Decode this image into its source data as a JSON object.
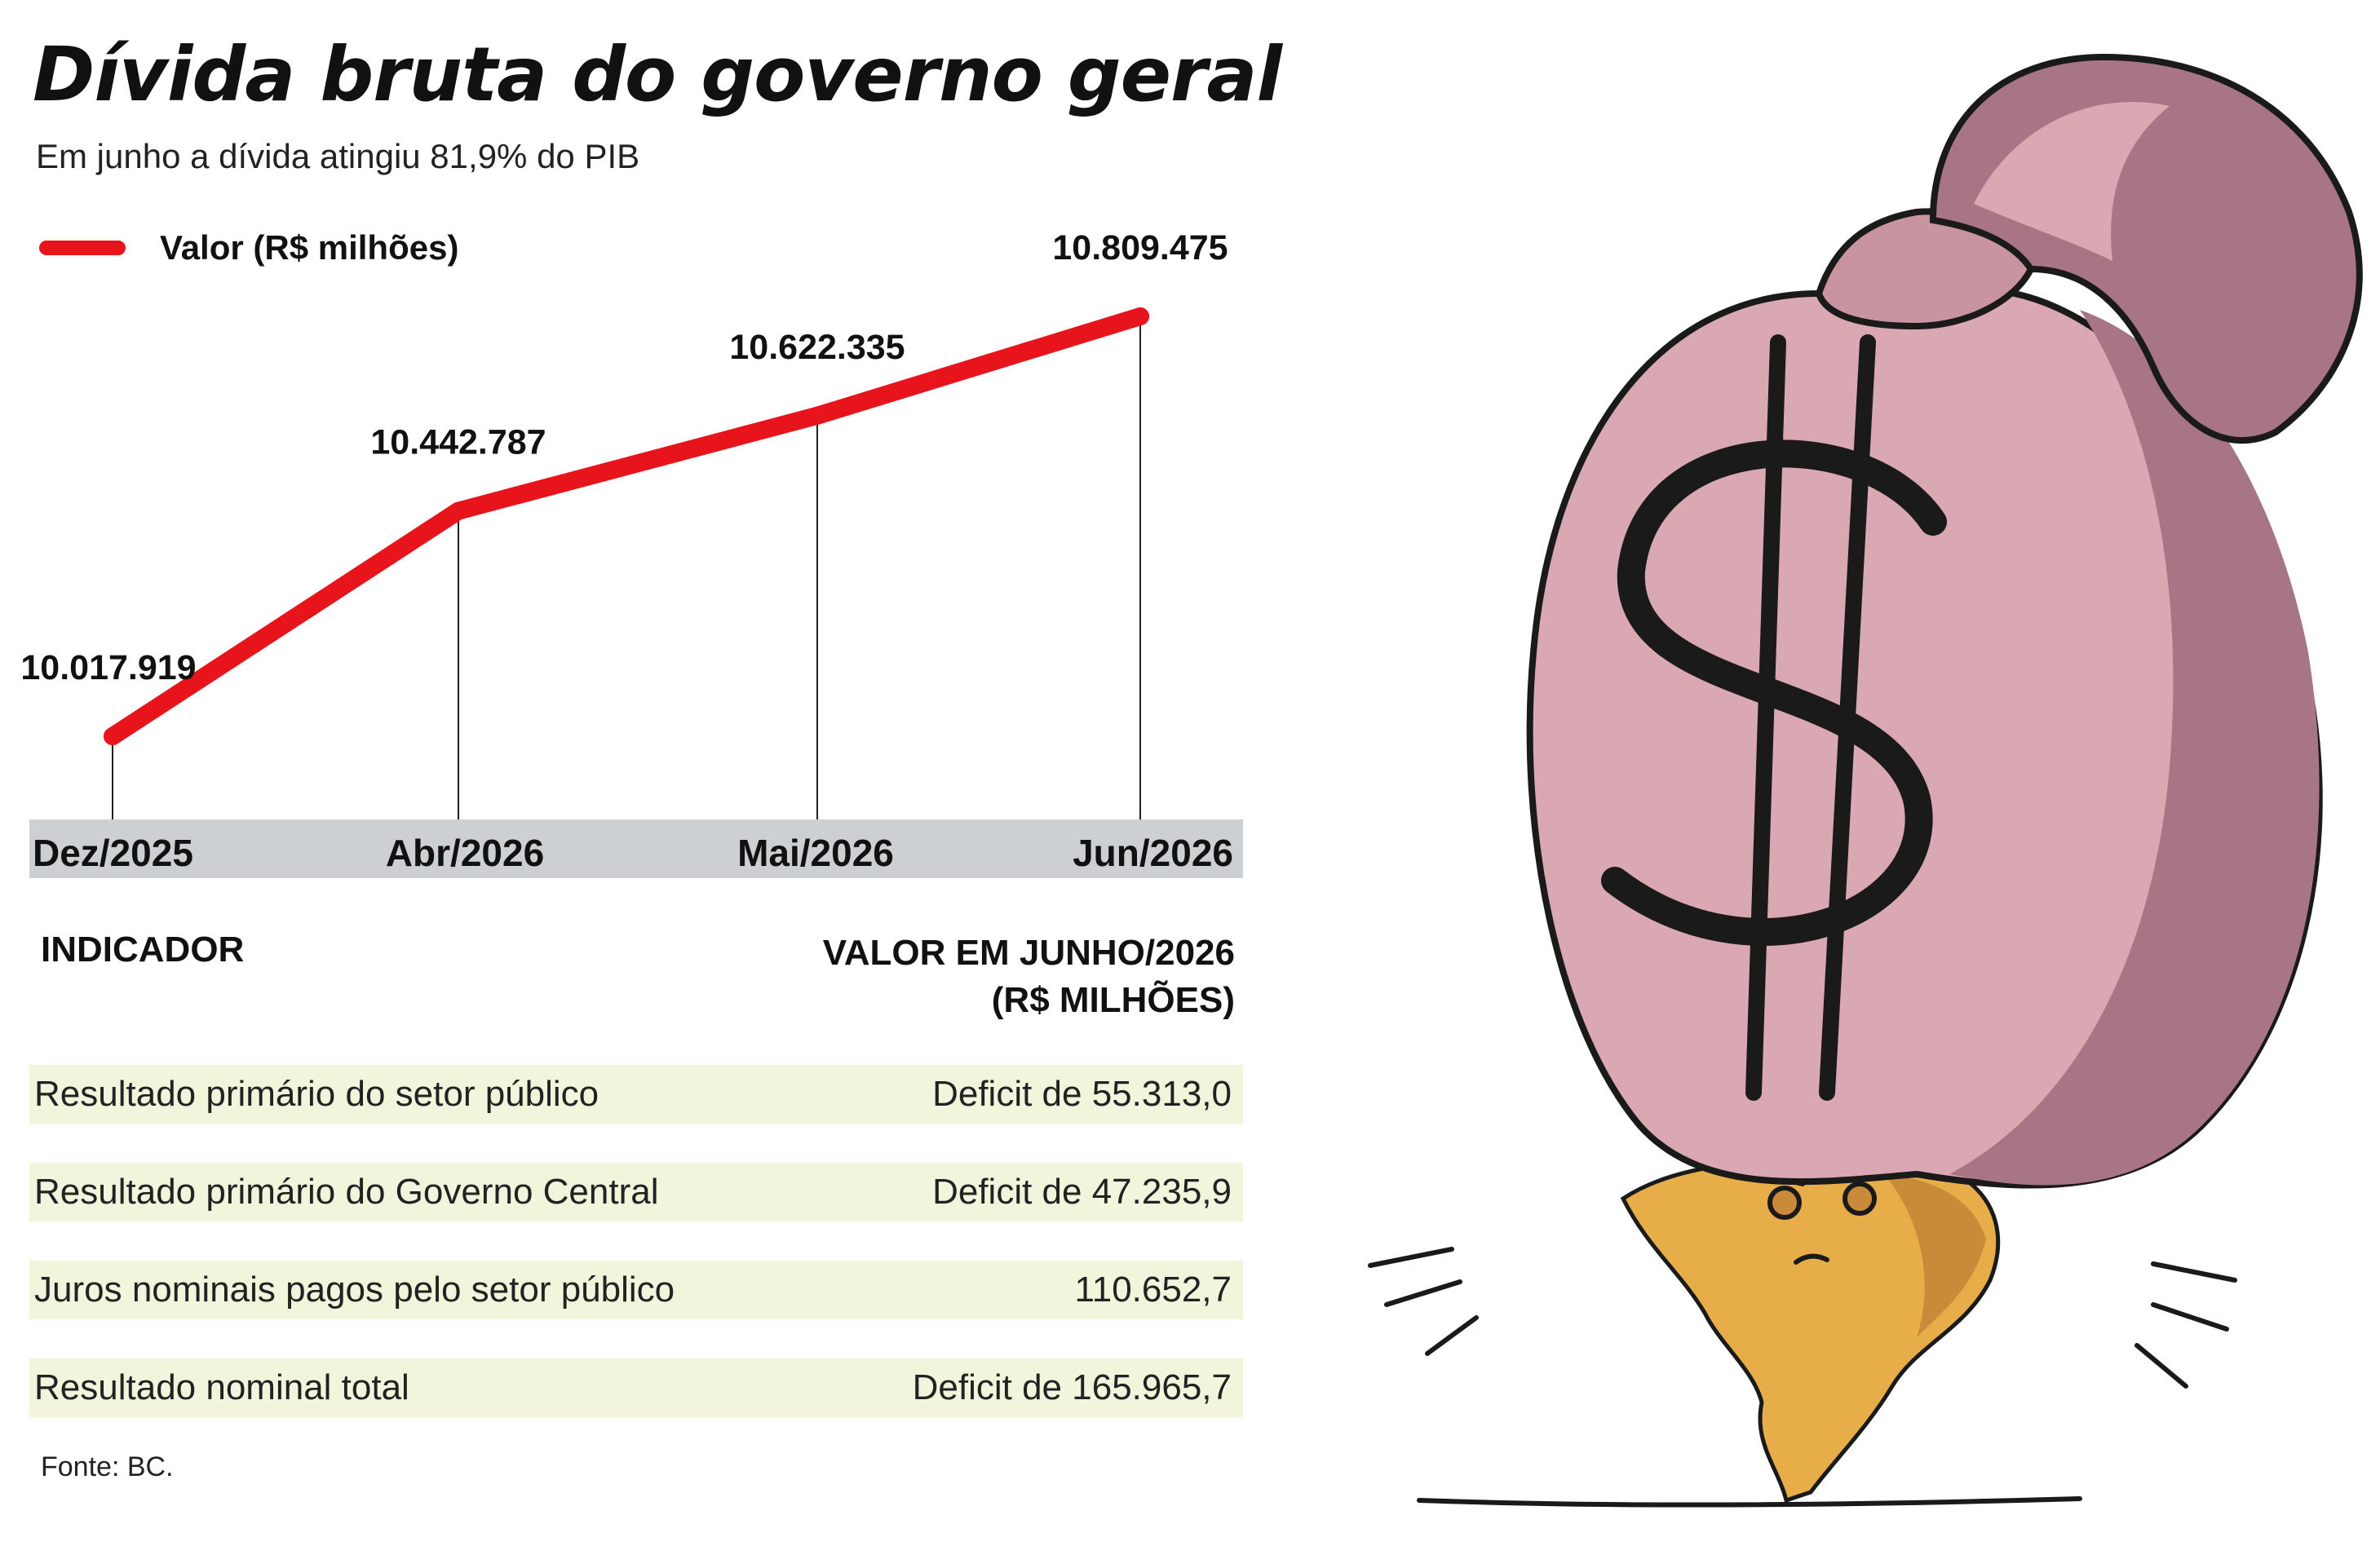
{
  "title": "Dívida bruta do governo geral",
  "subtitle": "Em junho a dívida atingiu 81,9% do PIB",
  "chart_data": {
    "type": "line",
    "legend": "top-left",
    "categories": [
      "Dez/2025",
      "Abr/2026",
      "Mai/2026",
      "Jun/2026"
    ],
    "series": [
      {
        "name": "Valor (R$ milhões)",
        "color": "#e8141b",
        "values": [
          10017919,
          10442787,
          10622335,
          10809475
        ],
        "labels": [
          "10.017.919",
          "10.442.787",
          "10.622.335",
          "10.809.475"
        ]
      }
    ],
    "grid": false
  },
  "table": {
    "headers": {
      "indicator": "INDICADOR",
      "value_line1": "VALOR EM JUNHO/2026",
      "value_line2": "(R$ MILHÕES)"
    },
    "rows": [
      {
        "label": "Resultado primário do setor público",
        "value": "Deficit de 55.313,0"
      },
      {
        "label": "Resultado primário do Governo Central",
        "value": "Deficit de 47.235,9"
      },
      {
        "label": "Juros nominais pagos pelo setor público",
        "value": "110.652,7"
      },
      {
        "label": "Resultado nominal total",
        "value": "Deficit de 165.965,7"
      }
    ]
  },
  "source": "Fonte: BC.",
  "illustration": {
    "icon": "money-bag-crushing-brazil-icon",
    "colors": {
      "bag": "#d9a8b2",
      "bag_shadow": "#a77585",
      "map": "#e6ad48",
      "map_shadow": "#c98a3a",
      "outline": "#1a1a1a"
    }
  }
}
